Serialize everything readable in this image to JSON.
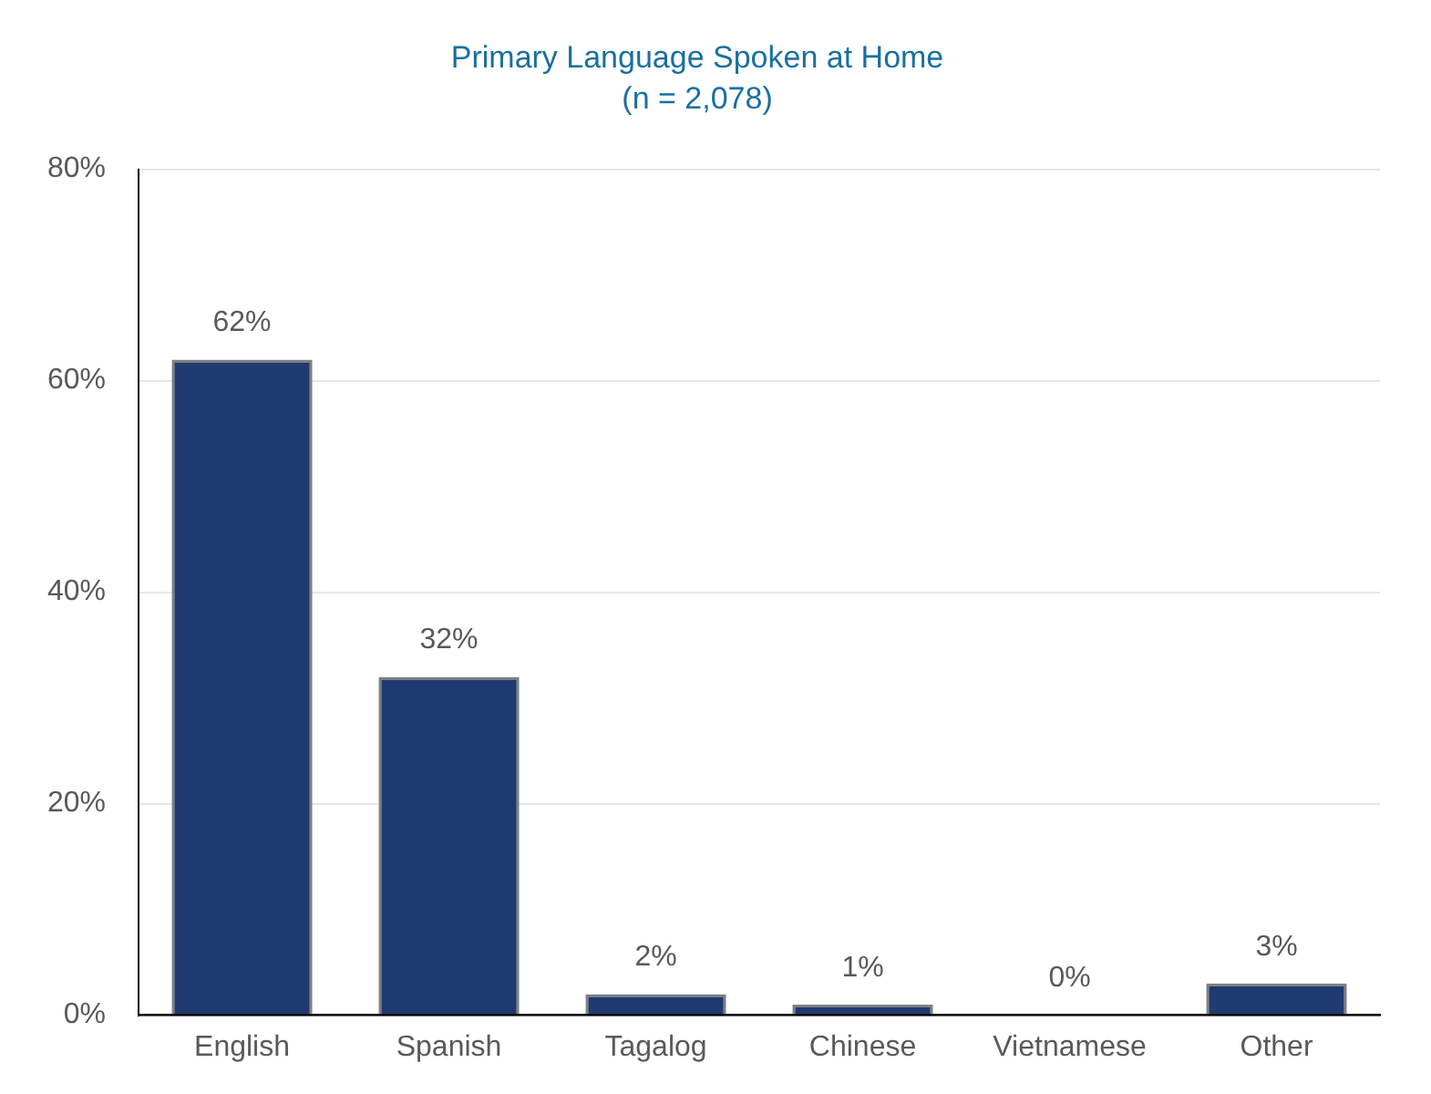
{
  "chart_data": {
    "type": "bar",
    "title": "Primary Language Spoken at Home",
    "subtitle": "(n = 2,078)",
    "categories": [
      "English",
      "Spanish",
      "Tagalog",
      "Chinese",
      "Vietnamese",
      "Other"
    ],
    "values": [
      62,
      32,
      2,
      1,
      0,
      3
    ],
    "value_labels": [
      "62%",
      "32%",
      "2%",
      "1%",
      "0%",
      "3%"
    ],
    "color": "#1f3a6e",
    "ylim": [
      0,
      80
    ],
    "yticks": [
      {
        "value": 0,
        "label": "0%"
      },
      {
        "value": 20,
        "label": "20%"
      },
      {
        "value": 40,
        "label": "40%"
      },
      {
        "value": 60,
        "label": "60%"
      },
      {
        "value": 80,
        "label": "80%"
      }
    ],
    "grid": "y",
    "legend": false
  }
}
